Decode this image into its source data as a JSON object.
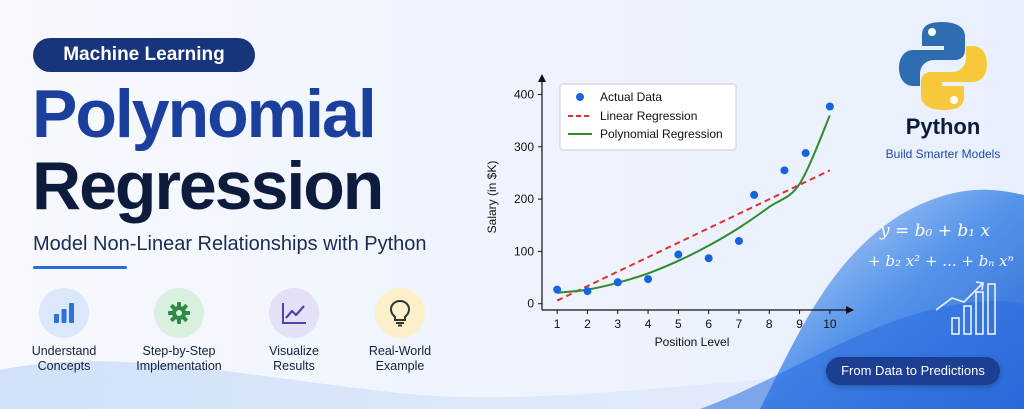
{
  "badge": "Machine Learning",
  "title_line1": "Polynomial",
  "title_line2": "Regression",
  "subtitle": "Model Non-Linear Relationships with Python",
  "features": [
    {
      "icon": "bar-chart-icon",
      "line1": "Understand",
      "line2": "Concepts",
      "bg": "#dbe7fb",
      "color": "#2a73dc"
    },
    {
      "icon": "gear-icon",
      "line1": "Step-by-Step",
      "line2": "Implementation",
      "bg": "#d9f0df",
      "color": "#2e8a44"
    },
    {
      "icon": "line-chart-icon",
      "line1": "Visualize",
      "line2": "Results",
      "bg": "#e3e0f7",
      "color": "#4b46a8"
    },
    {
      "icon": "lightbulb-icon",
      "line1": "Real-World",
      "line2": "Example",
      "bg": "#fbf0c9",
      "color": "#3a3a3a"
    }
  ],
  "python": {
    "name": "Python",
    "tagline": "Build Smarter Models"
  },
  "cta": "From Data to Predictions",
  "formula": {
    "line1": "y = b₀ + b₁ x",
    "line2": "+ b₂ x² + ... + bₙ xⁿ"
  },
  "colors": {
    "accent": "#1b3f9c",
    "actual": "#1565e0",
    "linear": "#e0302f",
    "poly": "#2e8b2e"
  },
  "chart_data": {
    "type": "scatter",
    "title": "",
    "xlabel": "Position Level",
    "ylabel": "Salary (in $K)",
    "xlim": [
      0.5,
      10.4
    ],
    "ylim": [
      -12,
      420
    ],
    "xticks": [
      1,
      2,
      3,
      4,
      5,
      6,
      7,
      8,
      9,
      10
    ],
    "yticks": [
      0,
      100,
      200,
      300,
      400
    ],
    "grid": false,
    "legend_position": "top-left",
    "series": [
      {
        "name": "Actual Data",
        "kind": "points",
        "x": [
          1,
          2,
          3,
          4,
          5,
          6,
          7,
          7.5,
          8.5,
          9.2,
          10
        ],
        "y": [
          27,
          24,
          41,
          47,
          94,
          87,
          120,
          208,
          255,
          288,
          377
        ]
      },
      {
        "name": "Linear Regression",
        "kind": "dashed-line",
        "x": [
          1,
          10
        ],
        "y": [
          6,
          255
        ]
      },
      {
        "name": "Polynomial Regression",
        "kind": "line",
        "x": [
          1,
          2,
          3,
          4,
          5,
          6,
          7,
          8,
          9,
          10
        ],
        "y": [
          21,
          27,
          40,
          58,
          82,
          111,
          145,
          185,
          229,
          360
        ]
      }
    ]
  }
}
